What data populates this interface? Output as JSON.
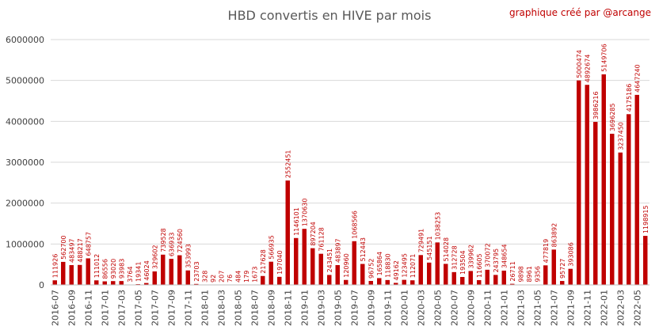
{
  "chart_data": {
    "type": "bar",
    "title": "HBD convertis en HIVE par mois",
    "subtitle": "graphique créé par @arcange",
    "xlabel": "",
    "ylabel": "",
    "ylim": [
      0,
      6000000
    ],
    "yticks": [
      "0",
      "1000000",
      "2000000",
      "3000000",
      "4000000",
      "5000000",
      "6000000"
    ],
    "grid": true,
    "bar_color": "#c00000",
    "categories": [
      "2016-07",
      "2016-08",
      "2016-09",
      "2016-10",
      "2016-11",
      "2016-12",
      "2017-01",
      "2017-02",
      "2017-03",
      "2017-04",
      "2017-05",
      "2017-06",
      "2017-07",
      "2017-08",
      "2017-09",
      "2017-10",
      "2017-11",
      "2017-12",
      "2018-01",
      "2018-02",
      "2018-03",
      "2018-04",
      "2018-05",
      "2018-06",
      "2018-07",
      "2018-08",
      "2018-09",
      "2018-10",
      "2018-11",
      "2018-12",
      "2019-01",
      "2019-02",
      "2019-03",
      "2019-04",
      "2019-05",
      "2019-06",
      "2019-07",
      "2019-08",
      "2019-09",
      "2019-10",
      "2019-11",
      "2019-12",
      "2020-01",
      "2020-02",
      "2020-03",
      "2020-04",
      "2020-05",
      "2020-06",
      "2020-07",
      "2020-08",
      "2020-09",
      "2020-10",
      "2020-11",
      "2020-12",
      "2021-01",
      "2021-02",
      "2021-03",
      "2021-04",
      "2021-05",
      "2021-06",
      "2021-07",
      "2021-08",
      "2021-09",
      "2021-10",
      "2021-11",
      "2021-12",
      "2022-01",
      "2022-02",
      "2022-03",
      "2022-04",
      "2022-05",
      "2022-06"
    ],
    "values": [
      111926,
      562700,
      483497,
      488217,
      648757,
      111012,
      86556,
      93020,
      93983,
      3764,
      19341,
      46024,
      329602,
      739528,
      636933,
      724560,
      353993,
      23703,
      328,
      92,
      207,
      76,
      484,
      179,
      1673,
      217628,
      566935,
      197040,
      2552451,
      1146101,
      1370630,
      897204,
      761128,
      243451,
      483897,
      120960,
      1068566,
      512443,
      96752,
      165864,
      118830,
      49162,
      123495,
      112071,
      729491,
      545151,
      1038253,
      514028,
      312728,
      193504,
      339962,
      116605,
      370072,
      243795,
      348654,
      26711,
      9898,
      8961,
      9356,
      477819,
      863892,
      95727,
      393086,
      5000474,
      4892674,
      3986216,
      5149706,
      3696285,
      3237450,
      4175186,
      4647240,
      1198915
    ],
    "xtick_labels": [
      "2016-07",
      "2016-09",
      "2016-11",
      "2017-01",
      "2017-03",
      "2017-05",
      "2017-07",
      "2017-09",
      "2017-11",
      "2018-01",
      "2018-03",
      "2018-05",
      "2018-07",
      "2018-09",
      "2018-11",
      "2019-01",
      "2019-03",
      "2019-05",
      "2019-07",
      "2019-09",
      "2019-11",
      "2020-01",
      "2020-03",
      "2020-05",
      "2020-07",
      "2020-09",
      "2020-11",
      "2021-01",
      "2021-03",
      "2021-05",
      "2021-07",
      "2021-09",
      "2021-11",
      "2022-01",
      "2022-03",
      "2022-05"
    ]
  }
}
